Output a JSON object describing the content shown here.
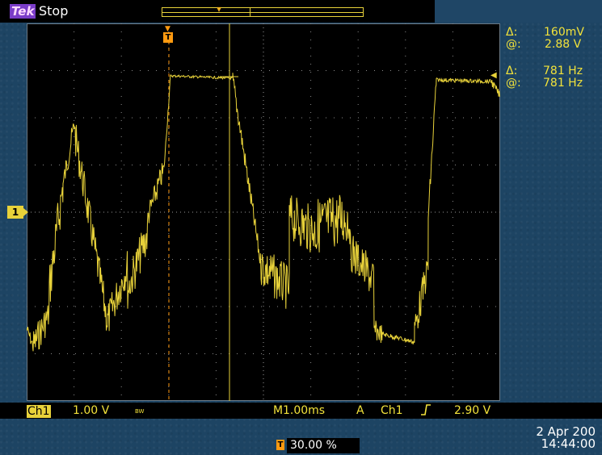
{
  "header": {
    "logo": "Tek",
    "run_state": "Stop"
  },
  "readouts": {
    "voltage_delta_symbol": "Δ:",
    "voltage_delta": "160mV",
    "voltage_at_symbol": "@:",
    "voltage_at": "2.88 V",
    "freq_delta_symbol": "Δ:",
    "freq_delta": "781 Hz",
    "freq_at_symbol": "@:",
    "freq_at": "781 Hz"
  },
  "channel_marker": "1",
  "trigger_marker": "T",
  "status_bar": {
    "channel": "Ch1",
    "volts_div": "1.00 V",
    "bandwidth": "BW",
    "m_prefix": "M",
    "time_div": "1.00ms",
    "trigger_mode": "A",
    "trigger_source": "Ch1",
    "trigger_slope_icon": "rising-edge",
    "trigger_level": "2.90 V"
  },
  "trigger_position": "30.00 %",
  "datetime": {
    "date": "2 Apr 200",
    "time": "14:44:00"
  },
  "colors": {
    "trace": "#e8d23a",
    "trigger": "#ff9a10",
    "background": "#1f4666"
  }
}
